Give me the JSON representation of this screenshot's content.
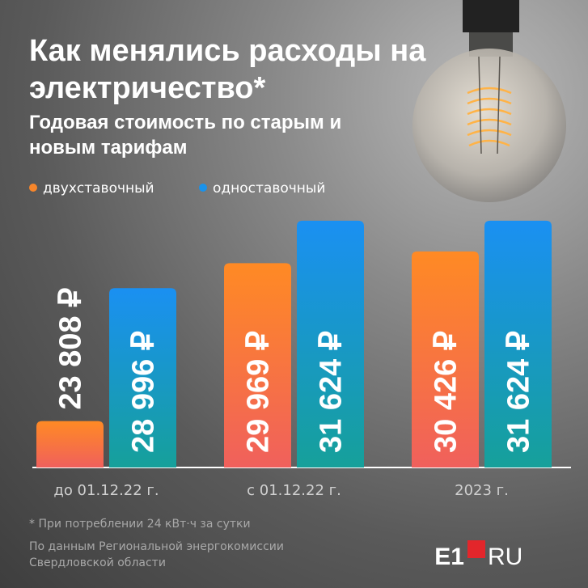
{
  "chart_data": {
    "type": "bar",
    "title": "Как менялись расходы на электричество*",
    "subtitle": "Годовая стоимость по старым и новым тарифам",
    "categories": [
      "до 01.12.22 г.",
      "с 01.12.22 г.",
      "2023 г."
    ],
    "series": [
      {
        "name": "двухставочный",
        "color": "#f7862b",
        "values": [
          23808,
          29969,
          30426
        ],
        "value_labels": [
          "23 808 ₽",
          "29 969 ₽",
          "30 426 ₽"
        ]
      },
      {
        "name": "одноставочный",
        "color": "#1a92ea",
        "values": [
          28996,
          31624,
          31624
        ],
        "value_labels": [
          "28 996 ₽",
          "31 624 ₽",
          "31 624 ₽"
        ]
      }
    ],
    "ylim": [
      22000,
      32000
    ],
    "footnote": "* При потреблении 24 кВт·ч за сутки",
    "source": "По данным Региональной энергокомиссии Свердловской области"
  },
  "logo": [
    "E1",
    "RU"
  ]
}
